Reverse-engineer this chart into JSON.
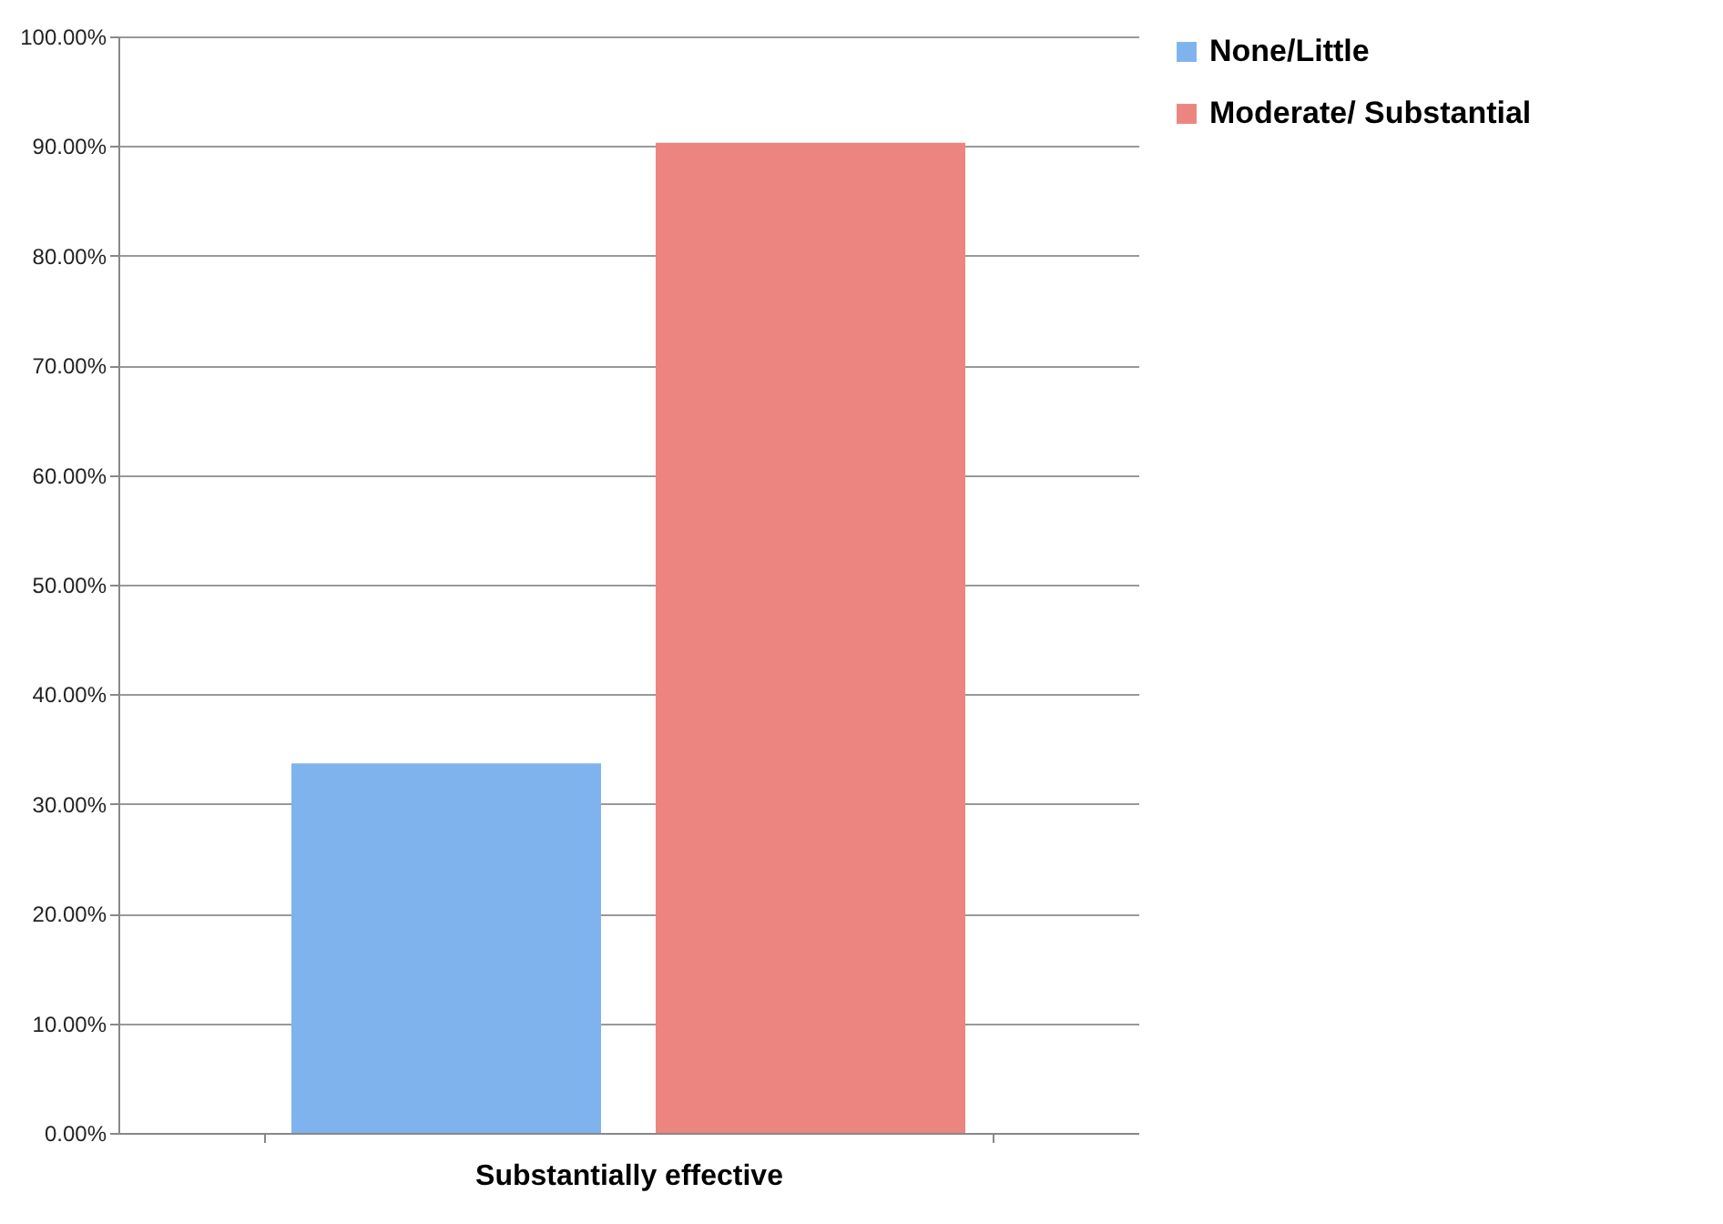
{
  "chart_data": {
    "type": "bar",
    "categories": [
      "Substantially effective"
    ],
    "series": [
      {
        "name": "None/Little",
        "color": "#7fb3ee",
        "values": [
          33.7
        ]
      },
      {
        "name": "Moderate/ Substantial",
        "color": "#ec8580",
        "values": [
          90.3
        ]
      }
    ],
    "ylim": [
      0,
      100
    ],
    "yticks": [
      {
        "value": 0,
        "label": "0.00%"
      },
      {
        "value": 10,
        "label": "10.00%"
      },
      {
        "value": 20,
        "label": "20.00%"
      },
      {
        "value": 30,
        "label": "30.00%"
      },
      {
        "value": 40,
        "label": "40.00%"
      },
      {
        "value": 50,
        "label": "50.00%"
      },
      {
        "value": 60,
        "label": "60.00%"
      },
      {
        "value": 70,
        "label": "70.00%"
      },
      {
        "value": 80,
        "label": "80.00%"
      },
      {
        "value": 90,
        "label": "90.00%"
      },
      {
        "value": 100,
        "label": "100.00%"
      }
    ],
    "grid": "y",
    "legend": "right"
  }
}
